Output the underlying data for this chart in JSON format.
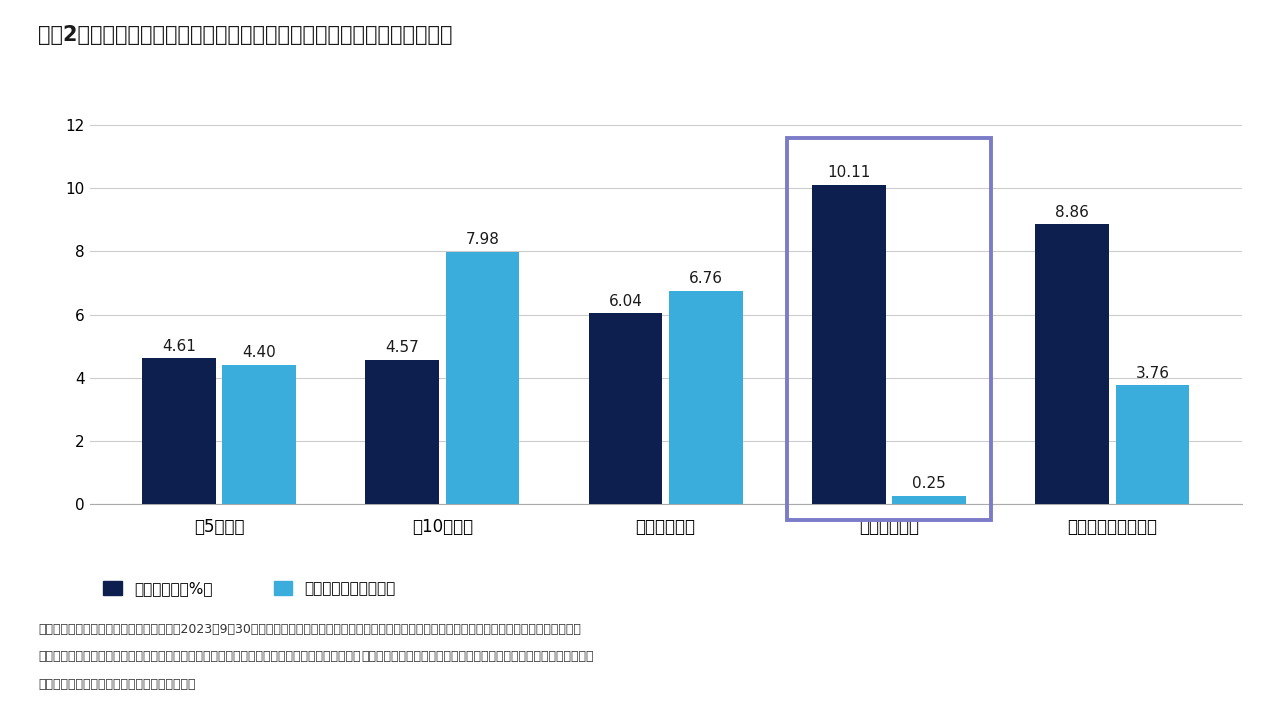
{
  "title": "図表2：短いデュレーションと高いインカム収入を提供するバンクローン",
  "categories": [
    "米5年国債",
    "米10年国債",
    "投資適格社債",
    "バンクローン",
    "ハイ・イールド債券"
  ],
  "series1_label": "市場利回り（%）",
  "series2_label": "デュレーション（年）",
  "series1_values": [
    4.61,
    4.57,
    6.04,
    10.11,
    8.86
  ],
  "series2_values": [
    4.4,
    7.98,
    6.76,
    0.25,
    3.76
  ],
  "series1_labels": [
    "4.61",
    "4.57",
    "6.04",
    "10.11",
    "8.86"
  ],
  "series2_labels": [
    "4.40",
    "7.98",
    "6.76",
    "0.25",
    "3.76"
  ],
  "bar_color1": "#0d1f4e",
  "bar_color2": "#3aaddc",
  "highlight_index": 3,
  "highlight_box_color": "#7b7bc8",
  "ylim": [
    0,
    13
  ],
  "yticks": [
    0,
    2,
    4,
    6,
    8,
    10,
    12
  ],
  "footnote_line1": "出所：クレディスイス、ブルームバーグ。2023年9月30日現在。投資適格社債はブルームバーグ米国投資適格社債指数、バンクローンはクレディスイス・",
  "footnote_line2_normal": "レバレッジド・ローン指数、ハイ・イールド債券はクレディスイス・ハイ・イールド債券指数。",
  "footnote_line2_bold": "過去のパフォーマンスは将来の成果を保証するものではありません。",
  "footnote_line3": "インデックスに直接投資することはできません",
  "background_color": "#ffffff",
  "grid_color": "#cccccc"
}
